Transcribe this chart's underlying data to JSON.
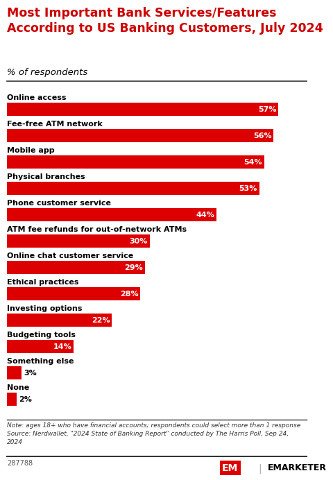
{
  "title": "Most Important Bank Services/Features\nAccording to US Banking Customers, July 2024",
  "subtitle": "% of respondents",
  "categories": [
    "Online access",
    "Fee-free ATM network",
    "Mobile app",
    "Physical branches",
    "Phone customer service",
    "ATM fee refunds for out-of-network ATMs",
    "Online chat customer service",
    "Ethical practices",
    "Investing options",
    "Budgeting tools",
    "Something else",
    "None"
  ],
  "values": [
    57,
    56,
    54,
    53,
    44,
    30,
    29,
    28,
    22,
    14,
    3,
    2
  ],
  "bar_color": "#dd0000",
  "value_color_inside": "#ffffff",
  "value_color_outside": "#000000",
  "note": "Note: ages 18+ who have financial accounts; respondents could select more than 1 response\nSource: Nerdwallet, \"2024 State of Banking Report\" conducted by The Harris Poll, Sep 24,\n2024",
  "footer_id": "287788",
  "background_color": "#ffffff",
  "title_color": "#cc0000",
  "bar_height": 0.52,
  "xlim": [
    0,
    63
  ],
  "figsize": [
    4.7,
    6.95
  ],
  "dpi": 100
}
